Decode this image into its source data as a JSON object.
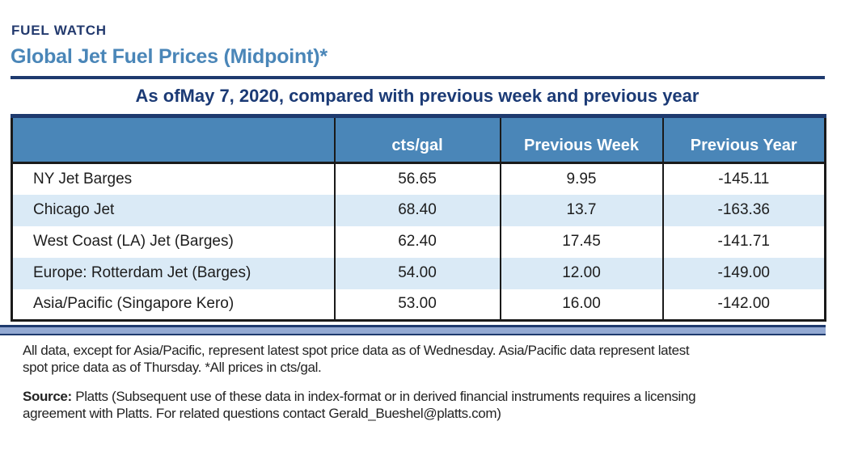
{
  "page": {
    "kicker": "FUEL WATCH",
    "title": "Global Jet Fuel Prices (Midpoint)*",
    "subtitle": "As ofMay 7, 2020, compared with previous week and previous year"
  },
  "colors": {
    "navy": "#1e3a6e",
    "accent_blue": "#4a86b8",
    "stripe_blue": "#daeaf6",
    "band_blue": "#93a9d2",
    "border_black": "#1a1a1a"
  },
  "table": {
    "columns": [
      "",
      "cts/gal",
      "Previous Week",
      "Previous Year"
    ],
    "rows": [
      {
        "label": "NY Jet Barges",
        "cts_gal": "56.65",
        "prev_week": "9.95",
        "prev_year": "-145.11"
      },
      {
        "label": "Chicago Jet",
        "cts_gal": "68.40",
        "prev_week": "13.7",
        "prev_year": "-163.36"
      },
      {
        "label": "West Coast (LA) Jet (Barges)",
        "cts_gal": "62.40",
        "prev_week": "17.45",
        "prev_year": "-141.71"
      },
      {
        "label": "Europe: Rotterdam Jet (Barges)",
        "cts_gal": "54.00",
        "prev_week": "12.00",
        "prev_year": "-149.00"
      },
      {
        "label": "Asia/Pacific (Singapore Kero)",
        "cts_gal": "53.00",
        "prev_week": "16.00",
        "prev_year": "-142.00"
      }
    ]
  },
  "footnote": {
    "line1": "All data, except for Asia/Pacific, represent latest spot price data as of Wednesday. Asia/Pacific data represent latest",
    "line2": "spot price data as of Thursday. *All prices in cts/gal."
  },
  "source": {
    "label": "Source:",
    "line1": "Platts (Subsequent use of these data in index-format or in derived financial instruments requires a licensing",
    "line2": "agreement with Platts. For related questions contact Gerald_Bueshel@platts.com)"
  }
}
